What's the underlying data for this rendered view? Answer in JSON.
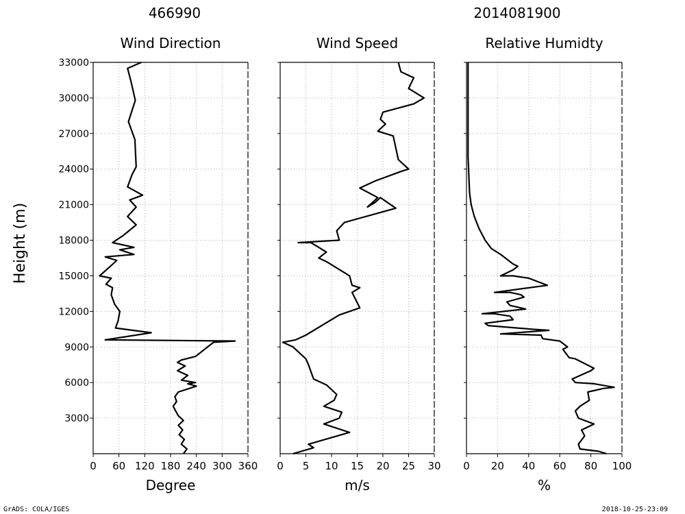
{
  "header": {
    "station_id": "466990",
    "datetime": "2014081900"
  },
  "footer": {
    "left": "GrADS: COLA/IGES",
    "right": "2018-10-25-23:09"
  },
  "shared_axis": {
    "ylabel": "Height (m)",
    "yticks": [
      3000,
      6000,
      9000,
      12000,
      15000,
      18000,
      21000,
      24000,
      27000,
      30000,
      33000
    ],
    "ylim": [
      0,
      33000
    ]
  },
  "chart_data": [
    {
      "type": "line",
      "title": "Wind Direction",
      "xlabel": "Degree",
      "xlim": [
        0,
        360
      ],
      "xticks": [
        0,
        60,
        120,
        180,
        240,
        300,
        360
      ],
      "grid": true,
      "series": [
        {
          "points": [
            [
              210,
              0
            ],
            [
              218,
              400
            ],
            [
              205,
              800
            ],
            [
              212,
              1200
            ],
            [
              200,
              1600
            ],
            [
              208,
              2000
            ],
            [
              198,
              2400
            ],
            [
              210,
              2800
            ],
            [
              198,
              3200
            ],
            [
              192,
              3600
            ],
            [
              186,
              4000
            ],
            [
              194,
              4400
            ],
            [
              190,
              4800
            ],
            [
              198,
              5200
            ],
            [
              240,
              5700
            ],
            [
              220,
              5900
            ],
            [
              238,
              6000
            ],
            [
              205,
              6200
            ],
            [
              220,
              6600
            ],
            [
              196,
              7000
            ],
            [
              214,
              7400
            ],
            [
              196,
              7700
            ],
            [
              205,
              7900
            ],
            [
              238,
              8200
            ],
            [
              280,
              9400
            ],
            [
              330,
              9500
            ],
            [
              28,
              9600
            ],
            [
              135,
              10200
            ],
            [
              52,
              10600
            ],
            [
              58,
              11200
            ],
            [
              62,
              12000
            ],
            [
              50,
              12600
            ],
            [
              42,
              13400
            ],
            [
              45,
              14000
            ],
            [
              30,
              14300
            ],
            [
              42,
              14800
            ],
            [
              15,
              15000
            ],
            [
              40,
              15800
            ],
            [
              55,
              16300
            ],
            [
              28,
              16600
            ],
            [
              95,
              16800
            ],
            [
              62,
              17200
            ],
            [
              95,
              17400
            ],
            [
              45,
              17800
            ],
            [
              70,
              18400
            ],
            [
              100,
              19300
            ],
            [
              80,
              20000
            ],
            [
              100,
              20800
            ],
            [
              85,
              21400
            ],
            [
              115,
              21800
            ],
            [
              80,
              22500
            ],
            [
              90,
              23500
            ],
            [
              100,
              24200
            ],
            [
              97,
              26500
            ],
            [
              82,
              28000
            ],
            [
              98,
              29800
            ],
            [
              88,
              31400
            ],
            [
              80,
              32500
            ],
            [
              112,
              33000
            ]
          ]
        }
      ]
    },
    {
      "type": "line",
      "title": "Wind Speed",
      "xlabel": "m/s",
      "xlim": [
        0,
        30
      ],
      "xticks": [
        0,
        5,
        10,
        15,
        20,
        25,
        30
      ],
      "grid": true,
      "series": [
        {
          "points": [
            [
              2.5,
              0
            ],
            [
              6.5,
              500
            ],
            [
              5.5,
              800
            ],
            [
              13.5,
              1800
            ],
            [
              8.5,
              2500
            ],
            [
              11.5,
              3000
            ],
            [
              12.0,
              3500
            ],
            [
              8.5,
              4000
            ],
            [
              10.5,
              4500
            ],
            [
              11.0,
              5000
            ],
            [
              9.0,
              5800
            ],
            [
              6.5,
              6300
            ],
            [
              5.5,
              7500
            ],
            [
              5.0,
              8000
            ],
            [
              2.5,
              9000
            ],
            [
              0.5,
              9400
            ],
            [
              3.0,
              9600
            ],
            [
              5.0,
              10000
            ],
            [
              11.5,
              11700
            ],
            [
              15.5,
              12300
            ],
            [
              14.0,
              13600
            ],
            [
              15.5,
              14000
            ],
            [
              14.0,
              14200
            ],
            [
              13.5,
              15000
            ],
            [
              9.0,
              16200
            ],
            [
              7.5,
              16500
            ],
            [
              9.0,
              17000
            ],
            [
              6.0,
              17800
            ],
            [
              3.5,
              17800
            ],
            [
              11.5,
              18000
            ],
            [
              11.0,
              18800
            ],
            [
              12.5,
              19500
            ],
            [
              22.5,
              20700
            ],
            [
              19.5,
              21600
            ],
            [
              18.5,
              21200
            ],
            [
              17.0,
              20800
            ],
            [
              19.0,
              21600
            ],
            [
              15.5,
              22400
            ],
            [
              18.5,
              23000
            ],
            [
              23.5,
              23800
            ],
            [
              25.0,
              24000
            ],
            [
              23.0,
              24800
            ],
            [
              22.0,
              26800
            ],
            [
              19.0,
              27200
            ],
            [
              20.5,
              27800
            ],
            [
              19.5,
              28200
            ],
            [
              20.0,
              28800
            ],
            [
              26.0,
              29500
            ],
            [
              28.0,
              30000
            ],
            [
              25.0,
              30800
            ],
            [
              26.0,
              31700
            ],
            [
              23.5,
              32200
            ],
            [
              23.0,
              33000
            ]
          ]
        }
      ]
    },
    {
      "type": "line",
      "title": "Relative Humidty",
      "xlabel": "%",
      "xlim": [
        0,
        100
      ],
      "xticks": [
        0,
        20,
        40,
        60,
        80,
        100
      ],
      "grid": true,
      "series": [
        {
          "points": [
            [
              90,
              0
            ],
            [
              85,
              200
            ],
            [
              73,
              400
            ],
            [
              72,
              800
            ],
            [
              76,
              1500
            ],
            [
              74,
              2000
            ],
            [
              82,
              2500
            ],
            [
              72,
              3000
            ],
            [
              70,
              3600
            ],
            [
              73,
              4000
            ],
            [
              79,
              4500
            ],
            [
              78,
              5200
            ],
            [
              88,
              5500
            ],
            [
              95,
              5600
            ],
            [
              82,
              5900
            ],
            [
              70,
              6000
            ],
            [
              68,
              6300
            ],
            [
              80,
              7000
            ],
            [
              82,
              7200
            ],
            [
              70,
              8000
            ],
            [
              66,
              8100
            ],
            [
              62,
              8800
            ],
            [
              65,
              9000
            ],
            [
              60,
              9500
            ],
            [
              49,
              9700
            ],
            [
              48,
              10000
            ],
            [
              22,
              10100
            ],
            [
              53,
              10400
            ],
            [
              42,
              10500
            ],
            [
              14,
              10800
            ],
            [
              12,
              11000
            ],
            [
              30,
              11300
            ],
            [
              28,
              11600
            ],
            [
              18,
              11800
            ],
            [
              10,
              11800
            ],
            [
              38,
              12200
            ],
            [
              28,
              12500
            ],
            [
              26,
              12800
            ],
            [
              37,
              13200
            ],
            [
              35,
              13400
            ],
            [
              28,
              13600
            ],
            [
              18,
              13600
            ],
            [
              52,
              14200
            ],
            [
              40,
              14800
            ],
            [
              30,
              15000
            ],
            [
              22,
              15000
            ],
            [
              30,
              15500
            ],
            [
              33,
              15800
            ],
            [
              30,
              16000
            ],
            [
              22,
              16800
            ],
            [
              16,
              17300
            ],
            [
              12,
              18000
            ],
            [
              8,
              19000
            ],
            [
              5,
              20000
            ],
            [
              3,
              21000
            ],
            [
              2,
              22000
            ],
            [
              1,
              25000
            ],
            [
              1,
              33000
            ]
          ]
        }
      ]
    }
  ]
}
